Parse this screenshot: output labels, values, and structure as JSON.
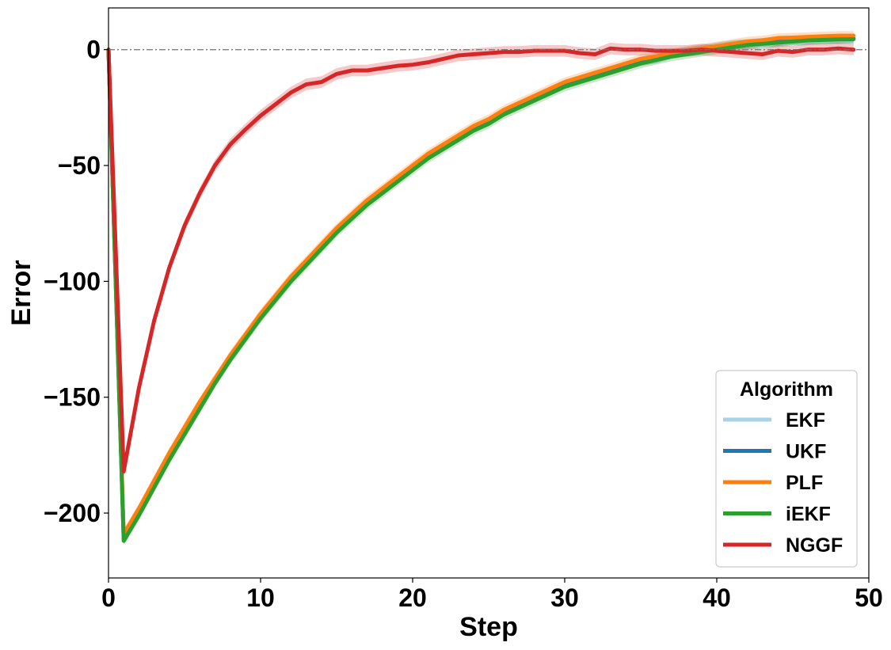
{
  "chart_data": {
    "type": "line",
    "title": "",
    "xlabel": "Step",
    "ylabel": "Error",
    "xlim": [
      0,
      50
    ],
    "ylim": [
      -228,
      18
    ],
    "xticks": [
      0,
      10,
      20,
      30,
      40,
      50
    ],
    "yticks": [
      0,
      -50,
      -100,
      -150,
      -200
    ],
    "x_tick_labels": [
      "0",
      "10",
      "20",
      "30",
      "40",
      "50"
    ],
    "y_tick_labels": [
      "0",
      "−50",
      "−100",
      "−150",
      "−200"
    ],
    "reference_line": 0,
    "grid": false,
    "legend_position": "bottom-right",
    "legend_title": "Algorithm",
    "x": [
      0,
      1,
      2,
      3,
      4,
      5,
      6,
      7,
      8,
      9,
      10,
      11,
      12,
      13,
      14,
      15,
      16,
      17,
      18,
      19,
      20,
      21,
      22,
      23,
      24,
      25,
      26,
      27,
      28,
      29,
      30,
      31,
      32,
      33,
      34,
      35,
      36,
      37,
      38,
      39,
      40,
      41,
      42,
      43,
      44,
      45,
      46,
      47,
      48,
      49
    ],
    "series": [
      {
        "name": "EKF",
        "color": "#a6d4e6",
        "values": [
          0,
          -211,
          -200,
          -187,
          -175,
          -164,
          -153,
          -143,
          -133,
          -124,
          -115,
          -107,
          -99,
          -92,
          -85,
          -78,
          -72,
          -66,
          -61,
          -56,
          -51,
          -46,
          -42,
          -38,
          -34,
          -31,
          -27,
          -24,
          -21,
          -18,
          -15,
          -13,
          -11,
          -9,
          -7,
          -5,
          -4,
          -2,
          -1,
          0,
          1,
          2,
          2.5,
          3,
          3.5,
          4,
          4.2,
          4.5,
          4.7,
          4.8
        ],
        "band": 2
      },
      {
        "name": "UKF",
        "color": "#1f77b4",
        "values": [
          0,
          -211,
          -200,
          -187,
          -175,
          -164,
          -153,
          -143,
          -133,
          -124,
          -115,
          -107,
          -99,
          -92,
          -85,
          -78,
          -72,
          -66,
          -61,
          -56,
          -51,
          -46,
          -42,
          -38,
          -34,
          -31,
          -27,
          -24,
          -21,
          -18,
          -15,
          -13,
          -11,
          -9,
          -7,
          -5,
          -4,
          -2,
          -1,
          0,
          1,
          2,
          2.5,
          3,
          3.5,
          4,
          4.2,
          4.5,
          4.7,
          4.8
        ],
        "band": 2
      },
      {
        "name": "PLF",
        "color": "#ff7f0e",
        "values": [
          0,
          -209,
          -198,
          -186,
          -174,
          -163,
          -152,
          -142,
          -132,
          -123,
          -114,
          -106,
          -98,
          -91,
          -84,
          -77,
          -71,
          -65,
          -60,
          -55,
          -50,
          -45,
          -41,
          -37,
          -33,
          -30,
          -26,
          -23,
          -20,
          -17,
          -14,
          -12,
          -10,
          -8,
          -6,
          -4,
          -3,
          -1.5,
          -0.5,
          0.5,
          1.5,
          2.5,
          3.5,
          4,
          5,
          5.2,
          5.5,
          5.8,
          6,
          6
        ],
        "band": 2
      },
      {
        "name": "iEKF",
        "color": "#2ca02c",
        "values": [
          0,
          -212,
          -201,
          -189,
          -177,
          -166,
          -155,
          -144,
          -134,
          -125,
          -116,
          -108,
          -100,
          -93,
          -86,
          -79,
          -73,
          -67,
          -62,
          -57,
          -52,
          -47,
          -43,
          -39,
          -35,
          -32,
          -28,
          -25,
          -22,
          -19,
          -16,
          -14,
          -12,
          -10,
          -8,
          -6,
          -4.5,
          -3,
          -2,
          -1,
          0,
          1,
          2,
          2.5,
          3,
          3.5,
          4,
          4.2,
          4.4,
          4.5
        ],
        "band": 2
      },
      {
        "name": "NGGF",
        "color": "#d62728",
        "values": [
          0,
          -182,
          -146,
          -117,
          -94,
          -76,
          -62,
          -50,
          -41,
          -34.5,
          -28.5,
          -23.5,
          -18.5,
          -15,
          -14,
          -10.5,
          -9,
          -9,
          -8,
          -7,
          -6.5,
          -5.5,
          -4,
          -2.5,
          -2,
          -1.5,
          -1,
          -1,
          -0.5,
          -0.5,
          -0.5,
          -1.5,
          -2,
          0.5,
          0,
          0,
          -0.5,
          -0.5,
          -0.5,
          0,
          -0.5,
          -1,
          -1.5,
          -2,
          -0.5,
          -1,
          0,
          0,
          0.5,
          0
        ],
        "band": 2.5
      }
    ]
  }
}
